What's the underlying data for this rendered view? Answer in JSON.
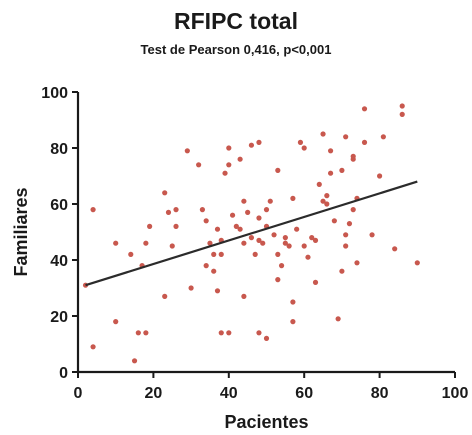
{
  "chart_data": {
    "type": "scatter",
    "title": "RFIPC total",
    "subtitle": "Test de Pearson 0,416, p<0,001",
    "xlabel": "Pacientes",
    "ylabel": "Familiares",
    "xlim": [
      0,
      100
    ],
    "ylim": [
      0,
      100
    ],
    "xticks": [
      "0",
      "20",
      "40",
      "60",
      "80",
      "100"
    ],
    "yticks": [
      "0",
      "20",
      "40",
      "60",
      "80",
      "100"
    ],
    "grid": false,
    "point_color": "#c8584e",
    "line_color": "#2b2b2b",
    "trendline": {
      "x": [
        2,
        90
      ],
      "y": [
        31,
        68
      ]
    },
    "points": [
      {
        "x": 2,
        "y": 31
      },
      {
        "x": 4,
        "y": 58
      },
      {
        "x": 4,
        "y": 9
      },
      {
        "x": 10,
        "y": 46
      },
      {
        "x": 10,
        "y": 18
      },
      {
        "x": 14,
        "y": 42
      },
      {
        "x": 15,
        "y": 4
      },
      {
        "x": 16,
        "y": 14
      },
      {
        "x": 17,
        "y": 38
      },
      {
        "x": 18,
        "y": 46
      },
      {
        "x": 18,
        "y": 14
      },
      {
        "x": 19,
        "y": 52
      },
      {
        "x": 23,
        "y": 64
      },
      {
        "x": 23,
        "y": 27
      },
      {
        "x": 24,
        "y": 57
      },
      {
        "x": 25,
        "y": 45
      },
      {
        "x": 26,
        "y": 58
      },
      {
        "x": 26,
        "y": 52
      },
      {
        "x": 29,
        "y": 79
      },
      {
        "x": 30,
        "y": 30
      },
      {
        "x": 32,
        "y": 74
      },
      {
        "x": 33,
        "y": 58
      },
      {
        "x": 34,
        "y": 54
      },
      {
        "x": 34,
        "y": 38
      },
      {
        "x": 35,
        "y": 46
      },
      {
        "x": 36,
        "y": 42
      },
      {
        "x": 36,
        "y": 36
      },
      {
        "x": 37,
        "y": 51
      },
      {
        "x": 37,
        "y": 29
      },
      {
        "x": 38,
        "y": 47
      },
      {
        "x": 38,
        "y": 42
      },
      {
        "x": 38,
        "y": 14
      },
      {
        "x": 39,
        "y": 71
      },
      {
        "x": 40,
        "y": 80
      },
      {
        "x": 40,
        "y": 74
      },
      {
        "x": 40,
        "y": 14
      },
      {
        "x": 41,
        "y": 56
      },
      {
        "x": 42,
        "y": 52
      },
      {
        "x": 43,
        "y": 76
      },
      {
        "x": 43,
        "y": 51
      },
      {
        "x": 44,
        "y": 61
      },
      {
        "x": 44,
        "y": 46
      },
      {
        "x": 44,
        "y": 27
      },
      {
        "x": 45,
        "y": 57
      },
      {
        "x": 46,
        "y": 81
      },
      {
        "x": 46,
        "y": 48
      },
      {
        "x": 47,
        "y": 42
      },
      {
        "x": 48,
        "y": 82
      },
      {
        "x": 48,
        "y": 55
      },
      {
        "x": 48,
        "y": 47
      },
      {
        "x": 48,
        "y": 14
      },
      {
        "x": 49,
        "y": 46
      },
      {
        "x": 50,
        "y": 58
      },
      {
        "x": 50,
        "y": 52
      },
      {
        "x": 50,
        "y": 12
      },
      {
        "x": 51,
        "y": 61
      },
      {
        "x": 52,
        "y": 49
      },
      {
        "x": 53,
        "y": 72
      },
      {
        "x": 53,
        "y": 42
      },
      {
        "x": 53,
        "y": 33
      },
      {
        "x": 54,
        "y": 38
      },
      {
        "x": 55,
        "y": 46
      },
      {
        "x": 55,
        "y": 48
      },
      {
        "x": 56,
        "y": 45
      },
      {
        "x": 57,
        "y": 62
      },
      {
        "x": 57,
        "y": 25
      },
      {
        "x": 57,
        "y": 18
      },
      {
        "x": 58,
        "y": 51
      },
      {
        "x": 59,
        "y": 82
      },
      {
        "x": 60,
        "y": 80
      },
      {
        "x": 60,
        "y": 45
      },
      {
        "x": 61,
        "y": 41
      },
      {
        "x": 62,
        "y": 48
      },
      {
        "x": 63,
        "y": 47
      },
      {
        "x": 63,
        "y": 32
      },
      {
        "x": 64,
        "y": 67
      },
      {
        "x": 65,
        "y": 85
      },
      {
        "x": 65,
        "y": 61
      },
      {
        "x": 66,
        "y": 63
      },
      {
        "x": 66,
        "y": 60
      },
      {
        "x": 67,
        "y": 71
      },
      {
        "x": 67,
        "y": 79
      },
      {
        "x": 68,
        "y": 54
      },
      {
        "x": 69,
        "y": 19
      },
      {
        "x": 70,
        "y": 72
      },
      {
        "x": 70,
        "y": 36
      },
      {
        "x": 71,
        "y": 84
      },
      {
        "x": 71,
        "y": 49
      },
      {
        "x": 71,
        "y": 45
      },
      {
        "x": 72,
        "y": 53
      },
      {
        "x": 73,
        "y": 76
      },
      {
        "x": 73,
        "y": 77
      },
      {
        "x": 73,
        "y": 58
      },
      {
        "x": 74,
        "y": 39
      },
      {
        "x": 74,
        "y": 62
      },
      {
        "x": 76,
        "y": 94
      },
      {
        "x": 76,
        "y": 82
      },
      {
        "x": 78,
        "y": 49
      },
      {
        "x": 80,
        "y": 70
      },
      {
        "x": 81,
        "y": 84
      },
      {
        "x": 84,
        "y": 44
      },
      {
        "x": 86,
        "y": 95
      },
      {
        "x": 86,
        "y": 92
      },
      {
        "x": 90,
        "y": 39
      }
    ]
  }
}
